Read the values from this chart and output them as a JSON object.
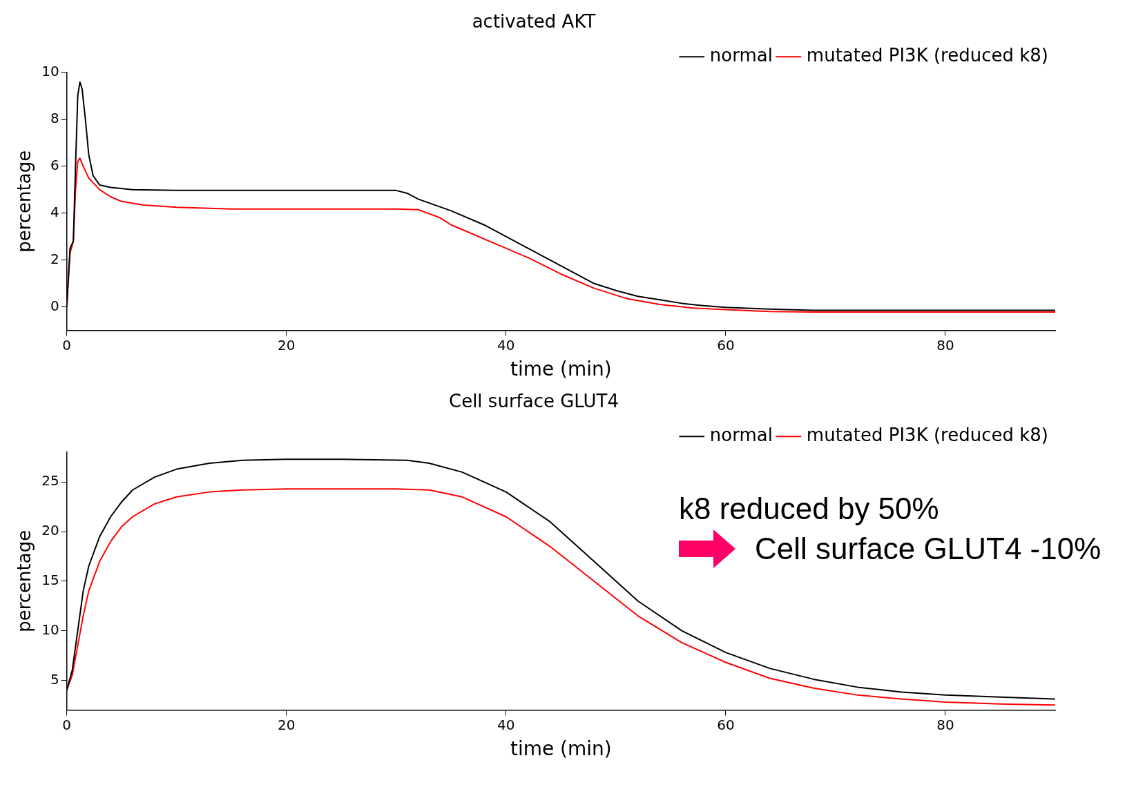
{
  "chart_data": [
    {
      "type": "line",
      "title": "activated AKT",
      "xlabel": "time (min)",
      "ylabel": "percentage",
      "xlim": [
        0,
        90
      ],
      "xticks": [
        0,
        20,
        40,
        60,
        80
      ],
      "ylim": [
        -1,
        10
      ],
      "yticks": [
        0,
        2,
        4,
        6,
        8,
        10
      ],
      "grid": false,
      "legend": "top right",
      "marker": "none",
      "line_style": "solid",
      "series": [
        {
          "name": "normal",
          "color": "#000000",
          "x": [
            0,
            0.3,
            0.6,
            0.8,
            1.0,
            1.2,
            1.4,
            1.7,
            2.0,
            2.4,
            3,
            4,
            6,
            10,
            30,
            31,
            32,
            35,
            38,
            40,
            42,
            44,
            46,
            48,
            50,
            52,
            54,
            56,
            58,
            60,
            64,
            68,
            90
          ],
          "values": [
            0,
            2.5,
            2.8,
            6,
            9,
            9.6,
            9.3,
            8,
            6.5,
            5.6,
            5.2,
            5.1,
            5.0,
            4.97,
            4.97,
            4.85,
            4.6,
            4.1,
            3.5,
            3.0,
            2.5,
            2.0,
            1.5,
            1.0,
            0.7,
            0.45,
            0.3,
            0.15,
            0.05,
            -0.02,
            -0.1,
            -0.15,
            -0.15
          ]
        },
        {
          "name": "mutated PI3K (reduced k8)",
          "color": "#ff0000",
          "x": [
            0,
            0.3,
            0.6,
            0.8,
            1.0,
            1.2,
            1.5,
            2,
            3,
            4,
            5,
            7,
            10,
            15,
            30,
            32,
            34,
            35,
            36,
            39,
            42,
            45,
            48,
            51,
            54,
            57,
            60,
            64,
            68,
            90
          ],
          "values": [
            0,
            2.3,
            2.8,
            5,
            6.2,
            6.35,
            6.0,
            5.5,
            5.0,
            4.7,
            4.5,
            4.35,
            4.25,
            4.18,
            4.18,
            4.15,
            3.8,
            3.5,
            3.3,
            2.7,
            2.1,
            1.4,
            0.8,
            0.35,
            0.1,
            -0.05,
            -0.12,
            -0.2,
            -0.22,
            -0.22
          ]
        }
      ]
    },
    {
      "type": "line",
      "title": "Cell surface GLUT4",
      "xlabel": "time (min)",
      "ylabel": "percentage",
      "xlim": [
        0,
        90
      ],
      "xticks": [
        0,
        20,
        40,
        60,
        80
      ],
      "ylim": [
        2,
        28
      ],
      "yticks": [
        5,
        10,
        15,
        20,
        25
      ],
      "grid": false,
      "legend": "top right",
      "marker": "none",
      "line_style": "solid",
      "annotations": [
        "k8 reduced by 50%",
        "Cell surface GLUT4 -10%"
      ],
      "series": [
        {
          "name": "normal",
          "color": "#000000",
          "x": [
            0,
            0.5,
            1,
            1.5,
            2,
            3,
            4,
            5,
            6,
            8,
            10,
            13,
            16,
            20,
            25,
            31,
            33,
            36,
            40,
            44,
            48,
            52,
            56,
            60,
            64,
            68,
            72,
            76,
            80,
            85,
            90
          ],
          "values": [
            4,
            6,
            10,
            14,
            16.5,
            19.5,
            21.5,
            23,
            24.2,
            25.5,
            26.3,
            26.9,
            27.2,
            27.3,
            27.3,
            27.2,
            26.9,
            26,
            24,
            21,
            17,
            13,
            10,
            7.8,
            6.2,
            5.1,
            4.3,
            3.8,
            3.5,
            3.3,
            3.1
          ]
        },
        {
          "name": "mutated PI3K (reduced k8)",
          "color": "#ff0000",
          "x": [
            0,
            0.5,
            1,
            1.5,
            2,
            3,
            4,
            5,
            6,
            8,
            10,
            13,
            16,
            20,
            30,
            33,
            36,
            40,
            44,
            48,
            52,
            56,
            60,
            64,
            68,
            72,
            76,
            80,
            85,
            90
          ],
          "values": [
            4,
            5.5,
            8.5,
            11.5,
            14,
            17,
            19,
            20.5,
            21.5,
            22.8,
            23.5,
            24,
            24.2,
            24.3,
            24.3,
            24.2,
            23.5,
            21.5,
            18.5,
            15,
            11.5,
            8.8,
            6.8,
            5.2,
            4.2,
            3.5,
            3.1,
            2.8,
            2.6,
            2.5
          ]
        }
      ]
    }
  ]
}
